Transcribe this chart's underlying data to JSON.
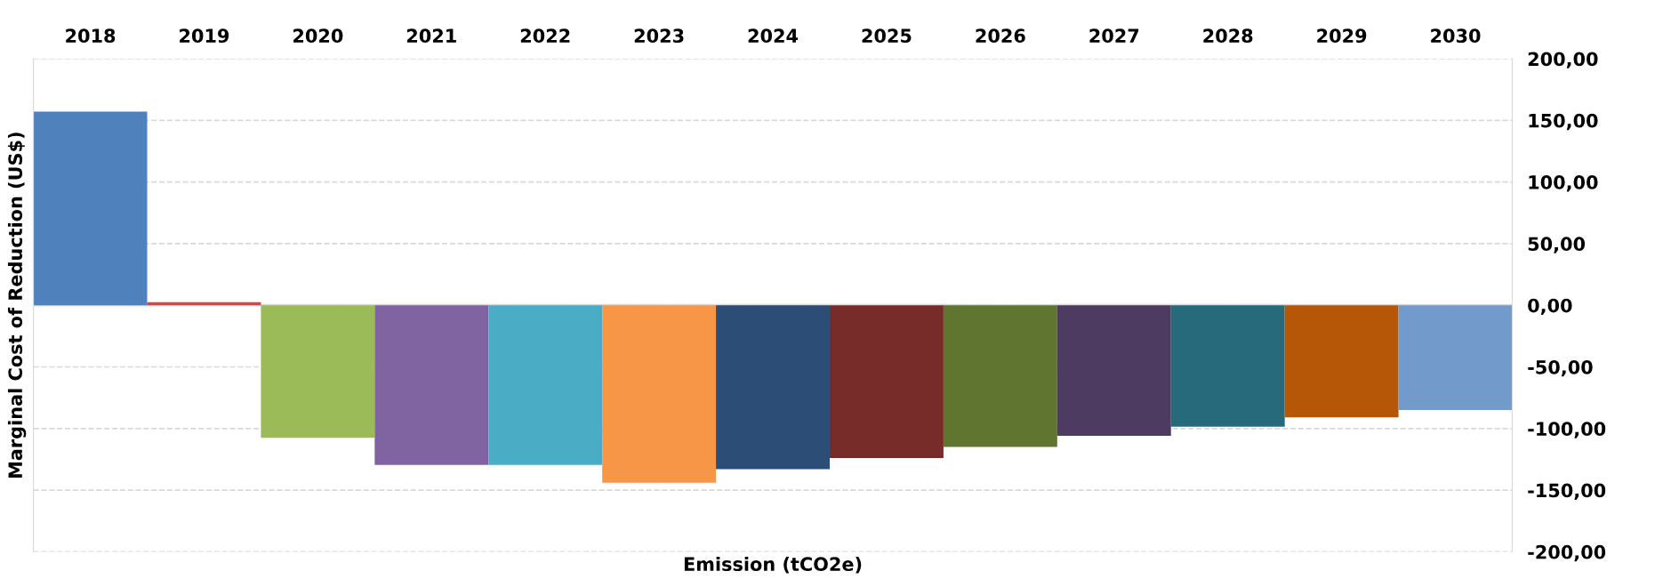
{
  "chart_data": {
    "type": "bar",
    "categories": [
      "2018",
      "2019",
      "2020",
      "2021",
      "2022",
      "2023",
      "2024",
      "2025",
      "2026",
      "2027",
      "2028",
      "2029",
      "2030"
    ],
    "values": [
      157,
      2.5,
      -107.5,
      -129.5,
      -129.5,
      -144,
      -133,
      -124,
      -115,
      -106,
      -98.5,
      -91,
      -85
    ],
    "colors": [
      "#4f81bd",
      "#c0504d",
      "#9bbb59",
      "#8064a2",
      "#4bacc6",
      "#f79646",
      "#2c4d75",
      "#772c2a",
      "#5f7530",
      "#4d3b62",
      "#276a7c",
      "#b65708",
      "#729aca"
    ],
    "xlabel": "Emission (tCO2e)",
    "ylabel": "Marginal Cost of Reduction (US$)",
    "ylim": [
      -200,
      200
    ],
    "yticks": [
      {
        "value": 200,
        "label": "200,00"
      },
      {
        "value": 150,
        "label": "150,00"
      },
      {
        "value": 100,
        "label": "100,00"
      },
      {
        "value": 50,
        "label": "50,00"
      },
      {
        "value": 0,
        "label": "0,00"
      },
      {
        "value": -50,
        "label": "-50,00"
      },
      {
        "value": -100,
        "label": "-100,00"
      },
      {
        "value": -150,
        "label": "-150,00"
      },
      {
        "value": -200,
        "label": "-200,00"
      }
    ],
    "grid": "y"
  }
}
